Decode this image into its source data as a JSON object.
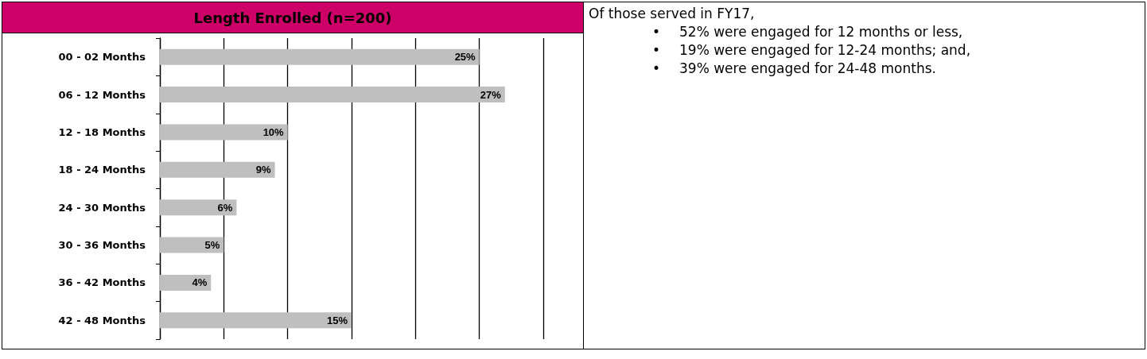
{
  "chart_data": [
    {
      "type": "bar",
      "title": "Length Enrolled (n=200)",
      "orientation": "horizontal",
      "categories": [
        "00 - 02 Months",
        "06 - 12 Months",
        "12 - 18 Months",
        "18 - 24 Months",
        "24 - 30 Months",
        "30 - 36 Months",
        "36 - 42 Months",
        "42 - 48 Months"
      ],
      "values": [
        25,
        27,
        10,
        9,
        6,
        5,
        4,
        15
      ],
      "value_labels": [
        "25%",
        "27%",
        "10%",
        "9%",
        "6%",
        "5%",
        "4%",
        "15%"
      ],
      "color": "#bfbfbf",
      "xlim": [
        0,
        30
      ],
      "xticks": [
        {
          "value": 0,
          "label": null
        },
        {
          "value": 5,
          "label": null
        },
        {
          "value": 10,
          "label": null
        },
        {
          "value": 15,
          "label": null
        },
        {
          "value": 20,
          "label": null
        },
        {
          "value": 25,
          "label": null
        },
        {
          "value": 30,
          "label": null
        }
      ],
      "tick_labels": "y",
      "grid": "x"
    },
    {
      "type": "other",
      "title": "Of those served in FY17,",
      "annotations": [
        "• 52% were engaged for 12 months or less,",
        "• 19% were engaged for 12-24 months; and,",
        "• 39% were engaged for 24-48 months."
      ]
    }
  ]
}
